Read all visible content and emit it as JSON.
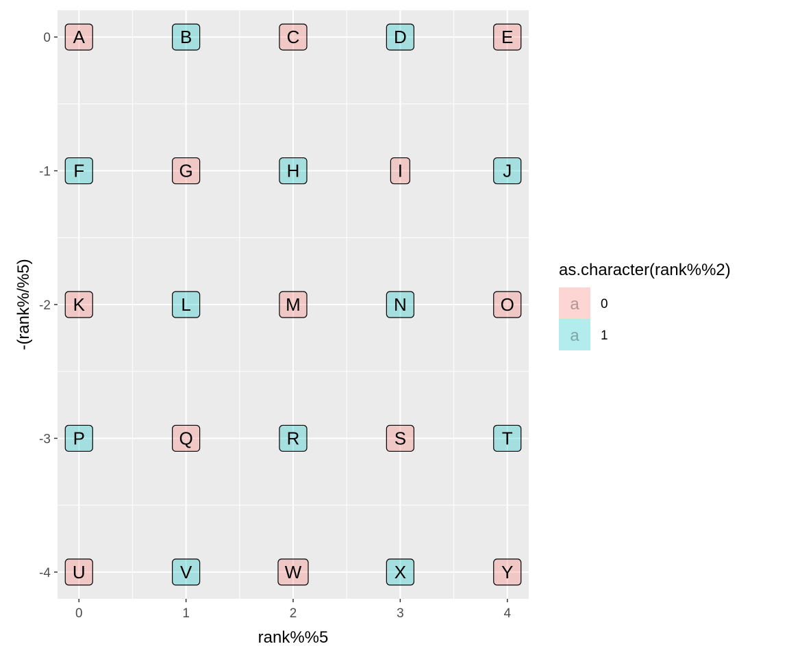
{
  "chart_data": {
    "type": "scatter",
    "xlabel": "rank%%5",
    "ylabel": "-(rank%/%5)",
    "xlim": [
      -0.2,
      4.2
    ],
    "ylim": [
      -4.2,
      0.2
    ],
    "x_ticks": [
      0,
      1,
      2,
      3,
      4
    ],
    "y_ticks": [
      0,
      -1,
      -2,
      -3,
      -4
    ],
    "grid": true,
    "legend": {
      "title": "as.character(rank%%2)",
      "position": "right",
      "key_glyph": "a",
      "entries": [
        {
          "label": "0",
          "color": "#F8766D"
        },
        {
          "label": "1",
          "color": "#00BFC4"
        }
      ]
    },
    "points": [
      {
        "x": 0,
        "y": 0,
        "label": "A",
        "group": "0"
      },
      {
        "x": 1,
        "y": 0,
        "label": "B",
        "group": "1"
      },
      {
        "x": 2,
        "y": 0,
        "label": "C",
        "group": "0"
      },
      {
        "x": 3,
        "y": 0,
        "label": "D",
        "group": "1"
      },
      {
        "x": 4,
        "y": 0,
        "label": "E",
        "group": "0"
      },
      {
        "x": 0,
        "y": -1,
        "label": "F",
        "group": "1"
      },
      {
        "x": 1,
        "y": -1,
        "label": "G",
        "group": "0"
      },
      {
        "x": 2,
        "y": -1,
        "label": "H",
        "group": "1"
      },
      {
        "x": 3,
        "y": -1,
        "label": "I",
        "group": "0"
      },
      {
        "x": 4,
        "y": -1,
        "label": "J",
        "group": "1"
      },
      {
        "x": 0,
        "y": -2,
        "label": "K",
        "group": "0"
      },
      {
        "x": 1,
        "y": -2,
        "label": "L",
        "group": "1"
      },
      {
        "x": 2,
        "y": -2,
        "label": "M",
        "group": "0"
      },
      {
        "x": 3,
        "y": -2,
        "label": "N",
        "group": "1"
      },
      {
        "x": 4,
        "y": -2,
        "label": "O",
        "group": "0"
      },
      {
        "x": 0,
        "y": -3,
        "label": "P",
        "group": "1"
      },
      {
        "x": 1,
        "y": -3,
        "label": "Q",
        "group": "0"
      },
      {
        "x": 2,
        "y": -3,
        "label": "R",
        "group": "1"
      },
      {
        "x": 3,
        "y": -3,
        "label": "S",
        "group": "0"
      },
      {
        "x": 4,
        "y": -3,
        "label": "T",
        "group": "1"
      },
      {
        "x": 0,
        "y": -4,
        "label": "U",
        "group": "0"
      },
      {
        "x": 1,
        "y": -4,
        "label": "V",
        "group": "1"
      },
      {
        "x": 2,
        "y": -4,
        "label": "W",
        "group": "0"
      },
      {
        "x": 3,
        "y": -4,
        "label": "X",
        "group": "1"
      },
      {
        "x": 4,
        "y": -4,
        "label": "Y",
        "group": "0"
      }
    ]
  }
}
